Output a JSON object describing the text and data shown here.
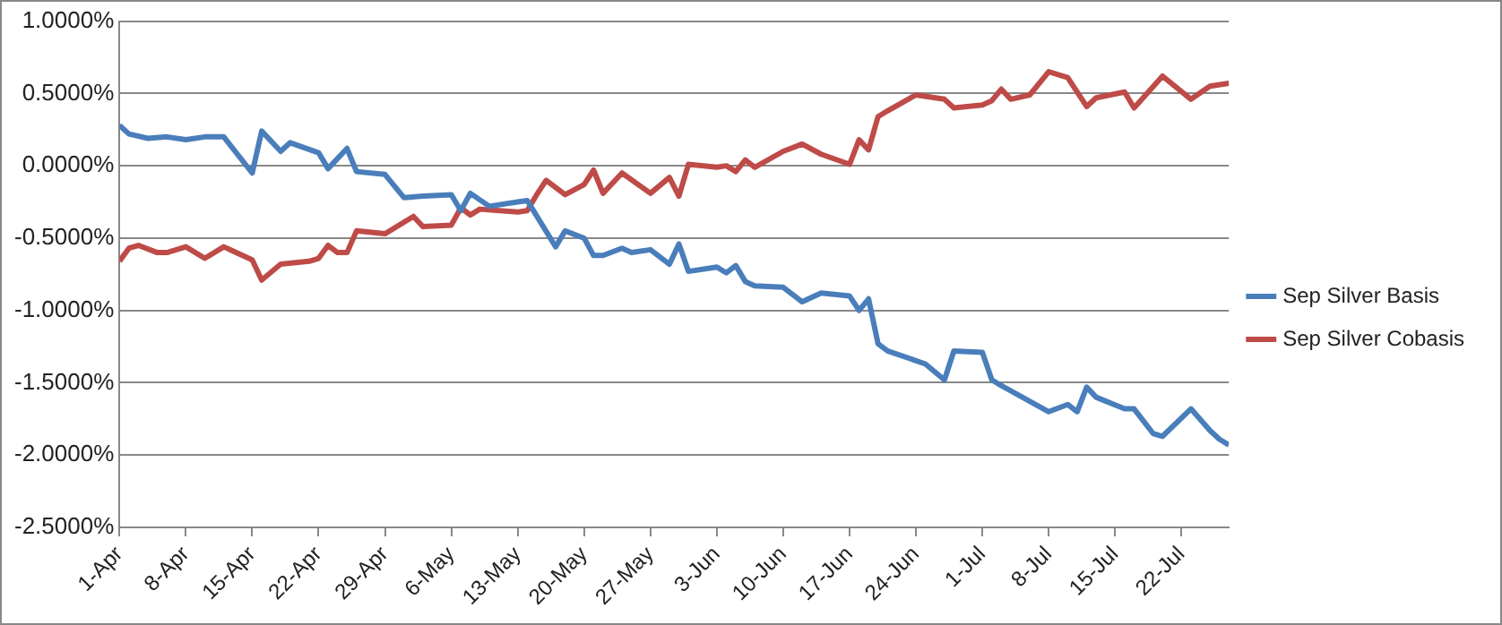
{
  "chart_data": {
    "type": "line",
    "xlim": [
      "--04-01",
      "--07-27"
    ],
    "xticks": [
      {
        "value": "--04-01",
        "label": "1-Apr"
      },
      {
        "value": "--04-08",
        "label": "8-Apr"
      },
      {
        "value": "--04-15",
        "label": "15-Apr"
      },
      {
        "value": "--04-22",
        "label": "22-Apr"
      },
      {
        "value": "--04-29",
        "label": "29-Apr"
      },
      {
        "value": "--05-06",
        "label": "6-May"
      },
      {
        "value": "--05-13",
        "label": "13-May"
      },
      {
        "value": "--05-20",
        "label": "20-May"
      },
      {
        "value": "--05-27",
        "label": "27-May"
      },
      {
        "value": "--06-03",
        "label": "3-Jun"
      },
      {
        "value": "--06-10",
        "label": "10-Jun"
      },
      {
        "value": "--06-17",
        "label": "17-Jun"
      },
      {
        "value": "--06-24",
        "label": "24-Jun"
      },
      {
        "value": "--07-01",
        "label": "1-Jul"
      },
      {
        "value": "--07-08",
        "label": "8-Jul"
      },
      {
        "value": "--07-15",
        "label": "15-Jul"
      },
      {
        "value": "--07-22",
        "label": "22-Jul"
      }
    ],
    "ylim": [
      -2.5,
      1
    ],
    "yticks": [
      {
        "value": -2.5,
        "label": "-2.5000%"
      },
      {
        "value": -2,
        "label": "-2.0000%"
      },
      {
        "value": -1.5,
        "label": "-1.5000%"
      },
      {
        "value": -1,
        "label": "-1.0000%"
      },
      {
        "value": -0.5,
        "label": "-0.5000%"
      },
      {
        "value": 0,
        "label": "0.0000%"
      },
      {
        "value": 0.5,
        "label": "0.5000%"
      },
      {
        "value": 1,
        "label": "1.0000%"
      }
    ],
    "grid": "y",
    "legend": "right",
    "marker": "none",
    "line_style": "solid",
    "series": [
      {
        "name": "Sep Silver Basis",
        "color": "#4a7ebb",
        "x": [
          "--04-01",
          "--04-02",
          "--04-04",
          "--04-06",
          "--04-08",
          "--04-10",
          "--04-12",
          "--04-15",
          "--04-16",
          "--04-18",
          "--04-19",
          "--04-22",
          "--04-23",
          "--04-25",
          "--04-26",
          "--04-29",
          "--05-01",
          "--05-03",
          "--05-06",
          "--05-07",
          "--05-08",
          "--05-10",
          "--05-13",
          "--05-14",
          "--05-17",
          "--05-18",
          "--05-20",
          "--05-21",
          "--05-22",
          "--05-24",
          "--05-25",
          "--05-27",
          "--05-29",
          "--05-30",
          "--05-31",
          "--06-03",
          "--06-04",
          "--06-05",
          "--06-06",
          "--06-07",
          "--06-10",
          "--06-12",
          "--06-14",
          "--06-17",
          "--06-18",
          "--06-19",
          "--06-20",
          "--06-21",
          "--06-25",
          "--06-27",
          "--06-28",
          "--07-01",
          "--07-02",
          "--07-03",
          "--07-08",
          "--07-10",
          "--07-11",
          "--07-12",
          "--07-13",
          "--07-16",
          "--07-17",
          "--07-19",
          "--07-20",
          "--07-23",
          "--07-25",
          "--07-26",
          "--07-27"
        ],
        "values": [
          0.28,
          0.22,
          0.19,
          0.2,
          0.18,
          0.2,
          0.2,
          -0.05,
          0.24,
          0.1,
          0.16,
          0.09,
          -0.02,
          0.12,
          -0.04,
          -0.06,
          -0.22,
          -0.21,
          -0.2,
          -0.31,
          -0.19,
          -0.28,
          -0.25,
          -0.24,
          -0.56,
          -0.45,
          -0.5,
          -0.62,
          -0.62,
          -0.57,
          -0.6,
          -0.58,
          -0.68,
          -0.54,
          -0.73,
          -0.7,
          -0.74,
          -0.69,
          -0.8,
          -0.83,
          -0.84,
          -0.94,
          -0.88,
          -0.9,
          -1.0,
          -0.92,
          -1.23,
          -1.28,
          -1.37,
          -1.48,
          -1.28,
          -1.29,
          -1.48,
          -1.52,
          -1.7,
          -1.65,
          -1.7,
          -1.53,
          -1.6,
          -1.68,
          -1.68,
          -1.85,
          -1.87,
          -1.68,
          -1.83,
          -1.89,
          -1.93
        ]
      },
      {
        "name": "Sep Silver Cobasis",
        "color": "#be4b48",
        "x": [
          "--04-01",
          "--04-02",
          "--04-03",
          "--04-05",
          "--04-06",
          "--04-08",
          "--04-10",
          "--04-12",
          "--04-15",
          "--04-16",
          "--04-18",
          "--04-21",
          "--04-22",
          "--04-23",
          "--04-24",
          "--04-25",
          "--04-26",
          "--04-29",
          "--05-02",
          "--05-03",
          "--05-06",
          "--05-07",
          "--05-08",
          "--05-09",
          "--05-13",
          "--05-14",
          "--05-15",
          "--05-16",
          "--05-18",
          "--05-20",
          "--05-21",
          "--05-22",
          "--05-24",
          "--05-27",
          "--05-29",
          "--05-30",
          "--05-31",
          "--06-03",
          "--06-04",
          "--06-05",
          "--06-06",
          "--06-07",
          "--06-10",
          "--06-12",
          "--06-14",
          "--06-17",
          "--06-18",
          "--06-19",
          "--06-20",
          "--06-21",
          "--06-24",
          "--06-27",
          "--06-28",
          "--07-01",
          "--07-02",
          "--07-03",
          "--07-04",
          "--07-06",
          "--07-08",
          "--07-10",
          "--07-12",
          "--07-13",
          "--07-16",
          "--07-17",
          "--07-20",
          "--07-23",
          "--07-25",
          "--07-27"
        ],
        "values": [
          -0.66,
          -0.57,
          -0.55,
          -0.6,
          -0.6,
          -0.56,
          -0.64,
          -0.56,
          -0.65,
          -0.79,
          -0.68,
          -0.66,
          -0.64,
          -0.55,
          -0.6,
          -0.6,
          -0.45,
          -0.47,
          -0.35,
          -0.42,
          -0.41,
          -0.29,
          -0.34,
          -0.3,
          -0.32,
          -0.31,
          -0.2,
          -0.1,
          -0.2,
          -0.13,
          -0.03,
          -0.19,
          -0.05,
          -0.19,
          -0.08,
          -0.21,
          0.01,
          -0.01,
          0.0,
          -0.04,
          0.04,
          -0.01,
          0.1,
          0.15,
          0.08,
          0.01,
          0.18,
          0.11,
          0.34,
          0.38,
          0.49,
          0.46,
          0.4,
          0.42,
          0.45,
          0.53,
          0.46,
          0.49,
          0.65,
          0.61,
          0.41,
          0.47,
          0.51,
          0.4,
          0.62,
          0.46,
          0.55,
          0.57
        ]
      }
    ]
  }
}
